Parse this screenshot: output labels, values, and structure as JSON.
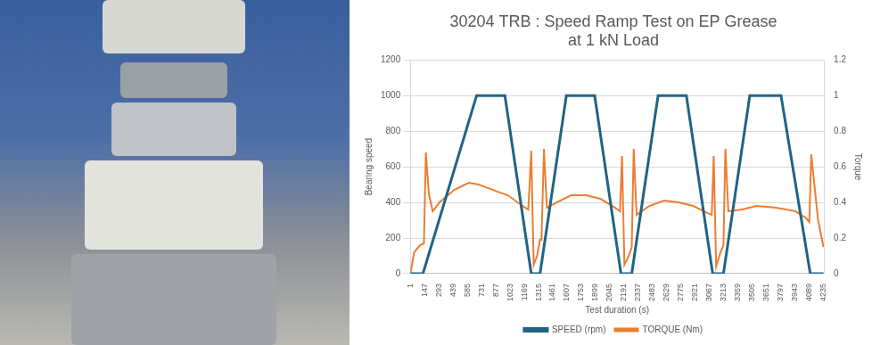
{
  "chart_data": {
    "type": "line",
    "title": [
      "30204 TRB : Speed Ramp Test on EP Grease",
      "at 1 kN Load"
    ],
    "x_label": "Test duration (s)",
    "y_label": "Bearing speed",
    "y2_label": "Torque",
    "xlim": [
      1,
      4240
    ],
    "xticks": [
      1,
      147,
      293,
      439,
      585,
      731,
      877,
      1023,
      1169,
      1315,
      1461,
      1607,
      1753,
      1899,
      2045,
      2191,
      2337,
      2483,
      2629,
      2775,
      2921,
      3067,
      3213,
      3359,
      3505,
      3651,
      3797,
      3943,
      4089,
      4235
    ],
    "ylim": [
      0,
      1200
    ],
    "yticks": [
      0,
      200,
      400,
      600,
      800,
      1000,
      1200
    ],
    "y2lim": [
      0,
      1.2
    ],
    "y2ticks": [
      0,
      0.2,
      0.4,
      0.6,
      0.8,
      1,
      1.2
    ],
    "grid": true,
    "legend": "bottom",
    "series": [
      {
        "name": "SPEED (rpm)",
        "color": "#1f6485",
        "marker": "none",
        "line_style": "solid",
        "x": [
          1,
          130,
          680,
          970,
          1240,
          1330,
          1600,
          1890,
          2160,
          2270,
          2540,
          2830,
          3100,
          3210,
          3480,
          3800,
          4100,
          4235
        ],
        "values": [
          0,
          0,
          1000,
          1000,
          0,
          0,
          1000,
          1000,
          0,
          0,
          1000,
          1000,
          0,
          0,
          1000,
          1000,
          0,
          0
        ]
      },
      {
        "name": "TORQUE (Nm)",
        "color": "#ed7d31",
        "axis": "y2",
        "marker": "none",
        "line_style": "solid",
        "x": [
          1,
          40,
          100,
          140,
          160,
          190,
          230,
          300,
          450,
          600,
          700,
          850,
          1000,
          1100,
          1180,
          1210,
          1240,
          1265,
          1300,
          1330,
          1345,
          1370,
          1400,
          1500,
          1650,
          1800,
          1950,
          2100,
          2150,
          2170,
          2195,
          2240,
          2270,
          2290,
          2320,
          2450,
          2600,
          2750,
          2900,
          3050,
          3090,
          3110,
          3135,
          3180,
          3210,
          3230,
          3260,
          3400,
          3550,
          3750,
          3950,
          4060,
          4090,
          4110,
          4180,
          4235
        ],
        "values": [
          0,
          0.12,
          0.16,
          0.17,
          0.68,
          0.45,
          0.35,
          0.4,
          0.47,
          0.51,
          0.5,
          0.47,
          0.44,
          0.4,
          0.37,
          0.36,
          0.69,
          0.05,
          0.1,
          0.19,
          0.19,
          0.7,
          0.37,
          0.4,
          0.44,
          0.44,
          0.42,
          0.37,
          0.35,
          0.66,
          0.05,
          0.1,
          0.15,
          0.7,
          0.33,
          0.38,
          0.41,
          0.4,
          0.38,
          0.34,
          0.33,
          0.66,
          0.04,
          0.12,
          0.16,
          0.7,
          0.35,
          0.36,
          0.38,
          0.37,
          0.35,
          0.31,
          0.29,
          0.67,
          0.3,
          0.15
        ]
      }
    ]
  }
}
